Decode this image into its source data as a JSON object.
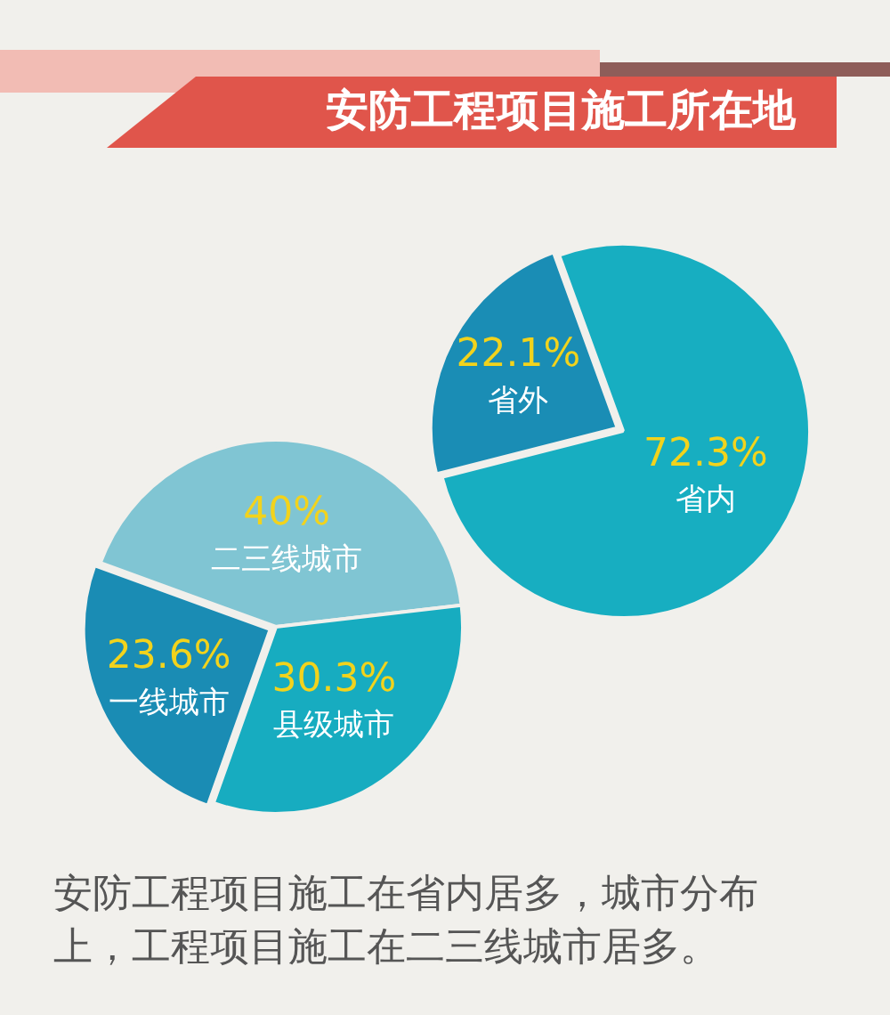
{
  "chart_data": [
    {
      "type": "pie",
      "title": "安防工程项目施工所在地",
      "categories": [
        "省内",
        "省外"
      ],
      "values": [
        72.3,
        22.1
      ],
      "colors": [
        "#17aec1",
        "#1a8db5"
      ],
      "value_labels": [
        "72.3%",
        "22.1%"
      ],
      "legend": false
    },
    {
      "type": "pie",
      "categories": [
        "二三线城市",
        "县级城市",
        "一线城市"
      ],
      "values": [
        40,
        30.3,
        23.6
      ],
      "colors": [
        "#80c5d3",
        "#17acc0",
        "#1a8cb4"
      ],
      "value_labels": [
        "40%",
        "30.3%",
        "23.6%"
      ],
      "legend": false,
      "annotations": [
        "安防工程项目施工在省内居多，城市分布上，工程项目施工在二三线城市居多。"
      ]
    }
  ]
}
